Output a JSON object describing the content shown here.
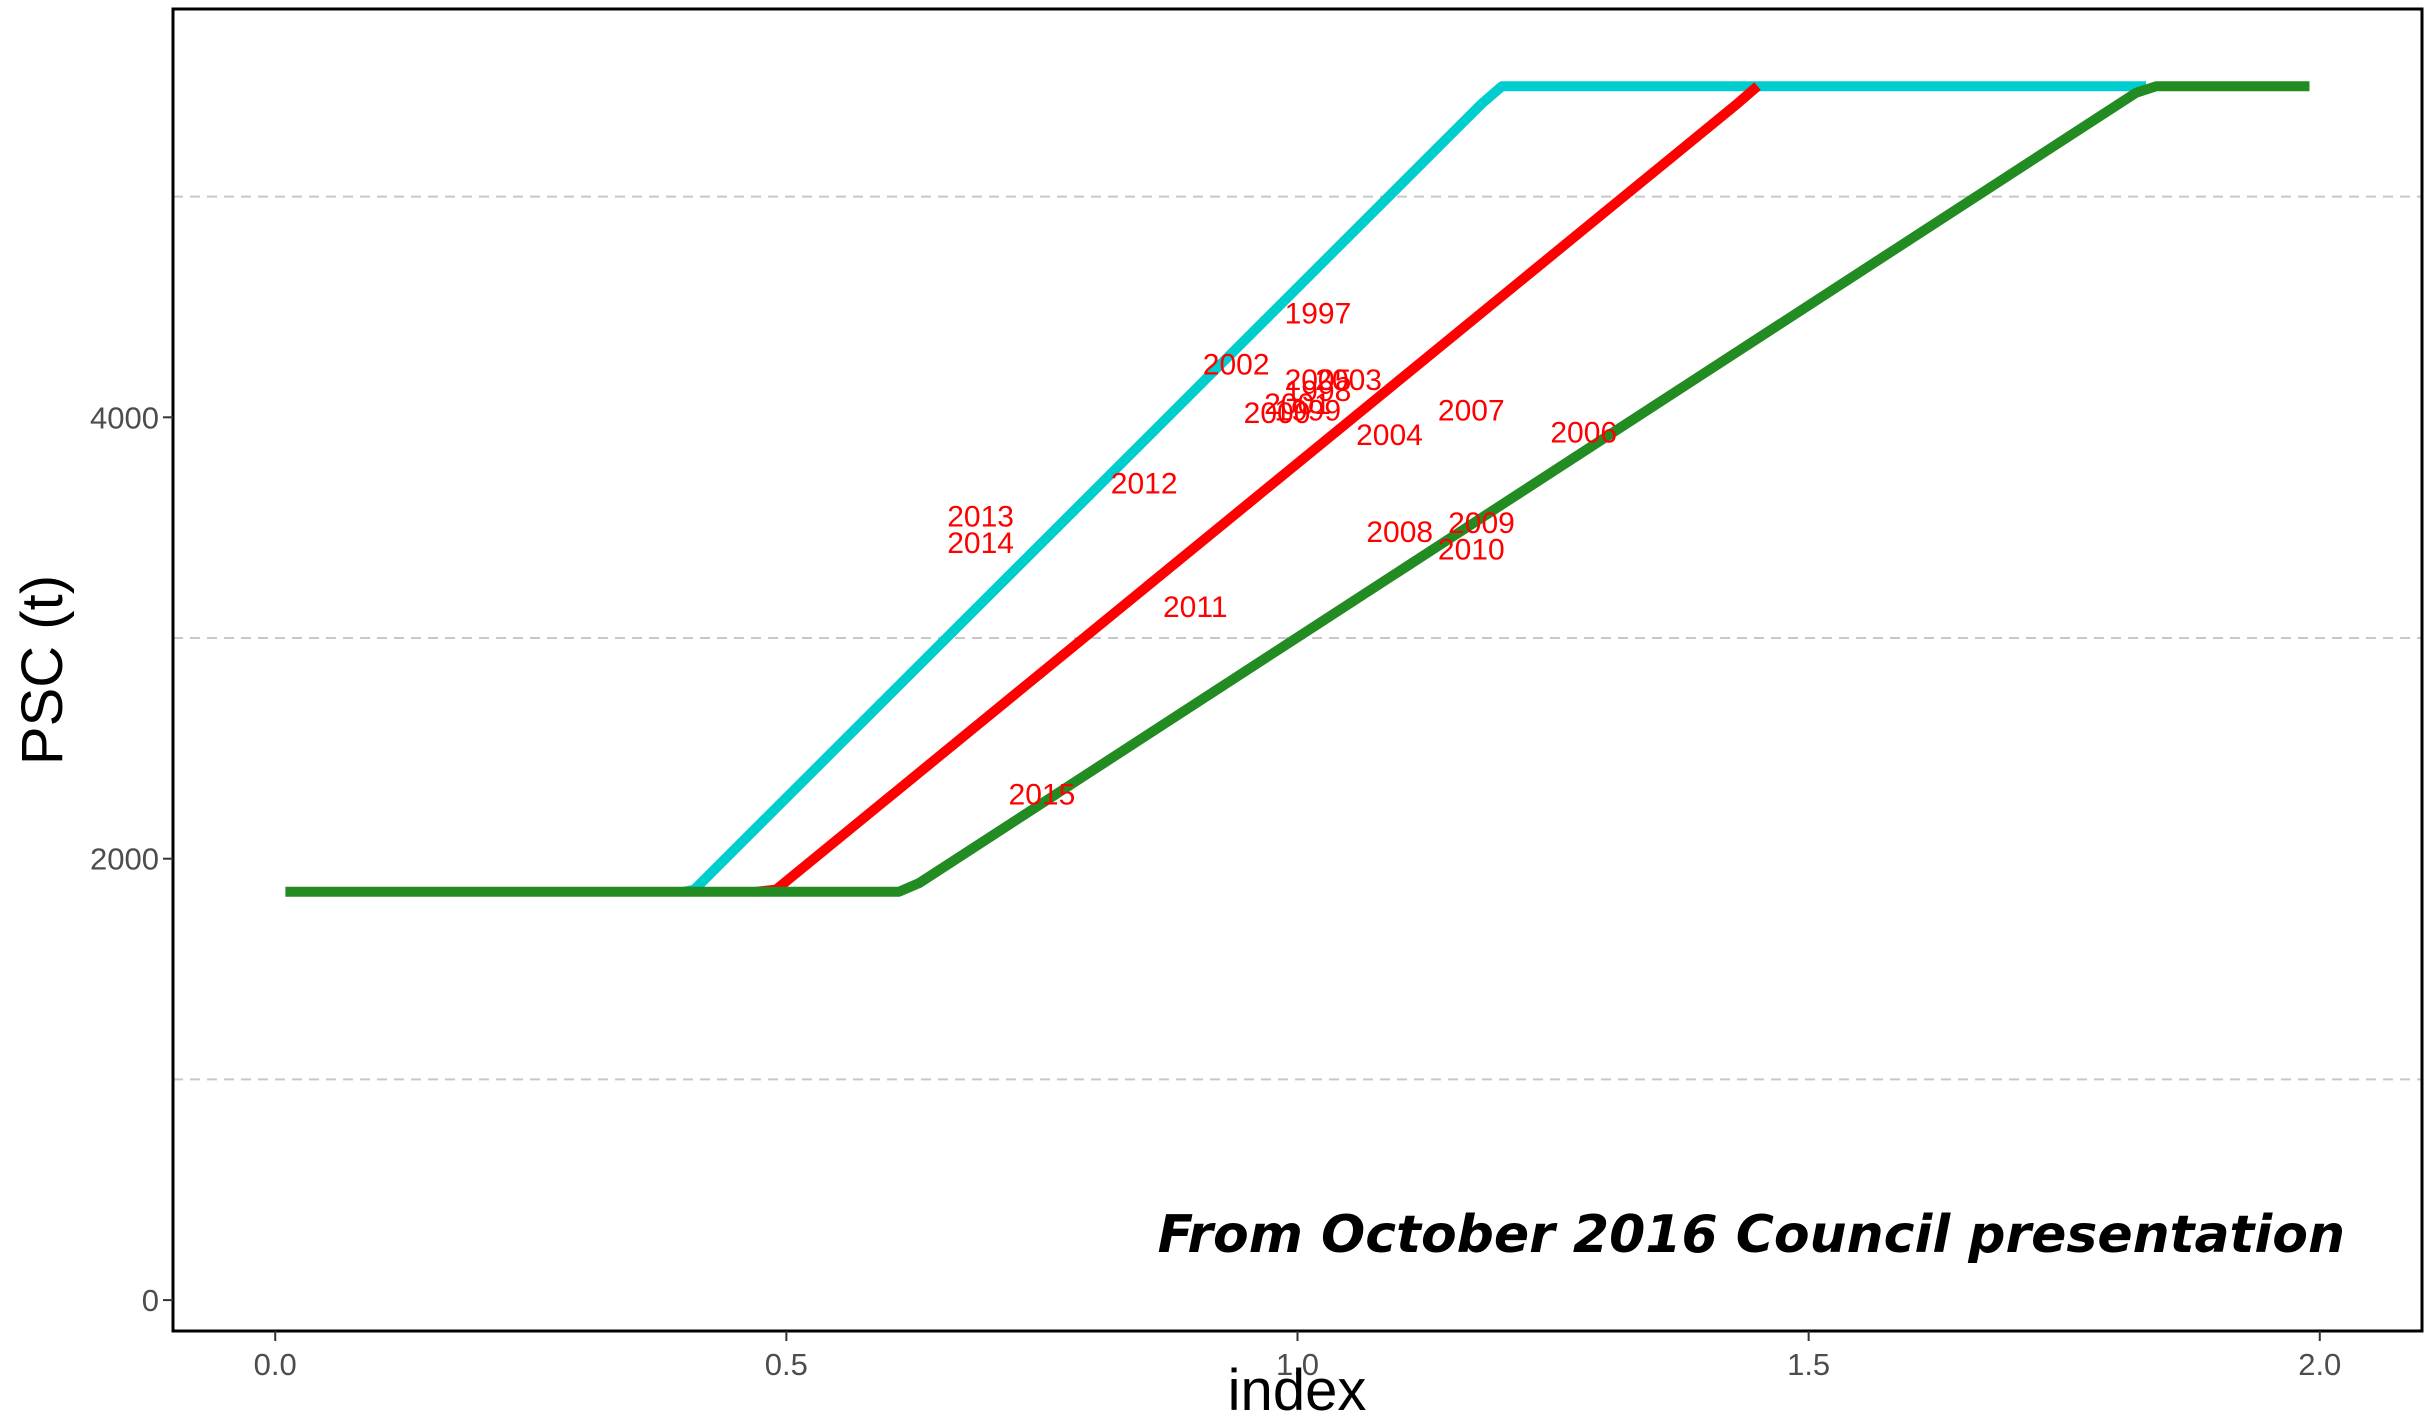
{
  "chart_data": {
    "type": "line",
    "title": "",
    "xlabel": "index",
    "ylabel": "PSC (t)",
    "xlim": [
      -0.1,
      2.1
    ],
    "ylim": [
      -140,
      5850
    ],
    "x_ticks": [
      0.0,
      0.5,
      1.0,
      1.5,
      2.0
    ],
    "x_tick_labels": [
      "0.0",
      "0.5",
      "1.0",
      "1.5",
      "2.0"
    ],
    "y_ticks": [
      0,
      2000,
      4000
    ],
    "y_tick_labels": [
      "0",
      "2000",
      "4000"
    ],
    "y_minor_gridlines": [
      1000,
      3000,
      5000
    ],
    "grid": "horizontal dashed",
    "colors": {
      "cyan": "#00CDCD",
      "red": "#FF0000",
      "green": "#228B22",
      "labels": "#FF0000"
    },
    "series": [
      {
        "color": "#00CDCD",
        "x": [
          0.4,
          0.41,
          1.18,
          1.2,
          1.83
        ],
        "y": [
          1850,
          1860,
          5420,
          5500,
          5500
        ]
      },
      {
        "color": "#FF0000",
        "x": [
          0.47,
          0.49,
          1.43,
          1.45
        ],
        "y": [
          1850,
          1860,
          5420,
          5500
        ]
      },
      {
        "color": "#228B22",
        "x": [
          0.01,
          0.61,
          0.63,
          1.82,
          1.84,
          1.99
        ],
        "y": [
          1850,
          1850,
          1890,
          5470,
          5500,
          5500
        ]
      }
    ],
    "point_labels": [
      {
        "text": "1997",
        "x": 1.02,
        "y": 4470
      },
      {
        "text": "2002",
        "x": 0.94,
        "y": 4240
      },
      {
        "text": "2003",
        "x": 1.05,
        "y": 4170
      },
      {
        "text": "2005",
        "x": 1.02,
        "y": 4170
      },
      {
        "text": "1998",
        "x": 1.02,
        "y": 4120
      },
      {
        "text": "2001",
        "x": 1.0,
        "y": 4060
      },
      {
        "text": "2000",
        "x": 0.98,
        "y": 4020
      },
      {
        "text": "1999",
        "x": 1.01,
        "y": 4030
      },
      {
        "text": "2004",
        "x": 1.09,
        "y": 3920
      },
      {
        "text": "2007",
        "x": 1.17,
        "y": 4030
      },
      {
        "text": "2006",
        "x": 1.28,
        "y": 3930
      },
      {
        "text": "2012",
        "x": 0.85,
        "y": 3700
      },
      {
        "text": "2013",
        "x": 0.69,
        "y": 3550
      },
      {
        "text": "2014",
        "x": 0.69,
        "y": 3430
      },
      {
        "text": "2011",
        "x": 0.9,
        "y": 3140
      },
      {
        "text": "2008",
        "x": 1.1,
        "y": 3480
      },
      {
        "text": "2009",
        "x": 1.18,
        "y": 3520
      },
      {
        "text": "2010",
        "x": 1.17,
        "y": 3400
      },
      {
        "text": "2015",
        "x": 0.75,
        "y": 2290
      }
    ],
    "annotations": [
      "From October 2016 Council presentation"
    ]
  }
}
